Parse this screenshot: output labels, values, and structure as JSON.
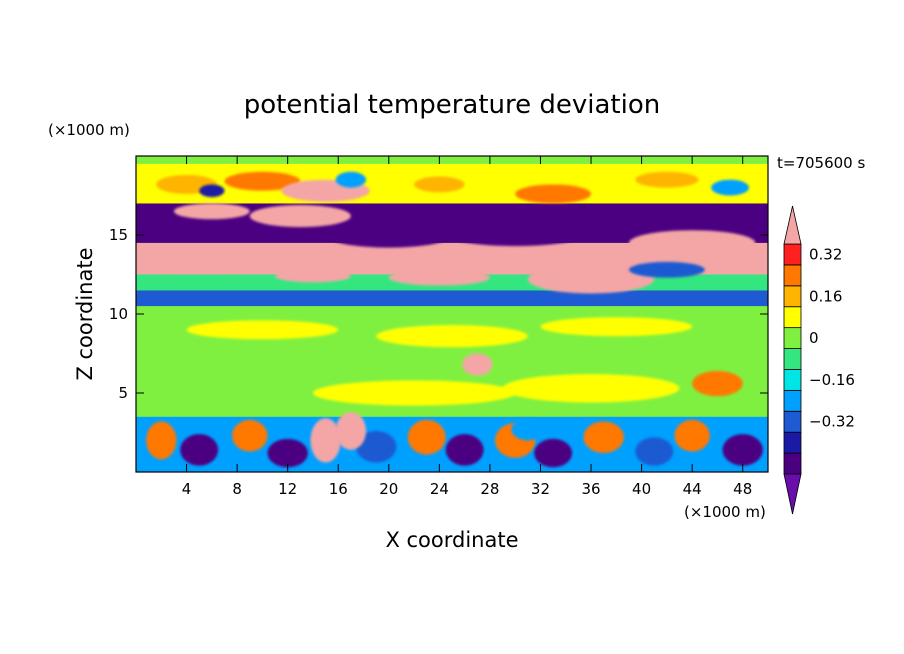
{
  "chart_data": {
    "type": "heatmap",
    "title": "potential temperature deviation",
    "xlabel": "X coordinate",
    "ylabel": "Z coordinate",
    "x_unit": "(×1000 m)",
    "y_unit": "(×1000 m)",
    "time_label": "t=705600 s",
    "xlim": [
      0,
      50
    ],
    "ylim": [
      0,
      20
    ],
    "x_ticks": [
      4,
      8,
      12,
      16,
      20,
      24,
      28,
      32,
      36,
      40,
      44,
      48
    ],
    "y_ticks": [
      5,
      10,
      15
    ],
    "colorbar": {
      "levels": [
        -0.48,
        -0.4,
        -0.32,
        -0.24,
        -0.16,
        -0.08,
        0,
        0.08,
        0.16,
        0.24,
        0.32,
        0.4
      ],
      "tick_labels": [
        "0.32",
        "0.16",
        "0",
        "−0.16",
        "−0.32"
      ],
      "tick_values": [
        0.32,
        0.16,
        0,
        -0.16,
        -0.32
      ],
      "colors": [
        "#6a0dad",
        "#4b0082",
        "#1a1aa6",
        "#1e5ad2",
        "#00a0ff",
        "#00e6e6",
        "#33e680",
        "#80f040",
        "#ffff00",
        "#ffb400",
        "#ff7800",
        "#ff2020",
        "#f4a6a6"
      ]
    },
    "bands": [
      {
        "z": [
          0.0,
          3.5
        ],
        "value": -0.2,
        "note": "turbulent boundary layer, mixed warm/cold cells"
      },
      {
        "z": [
          3.5,
          10.5
        ],
        "value": 0.02
      },
      {
        "z": [
          10.5,
          11.5
        ],
        "value": -0.32
      },
      {
        "z": [
          11.5,
          12.5
        ],
        "value": -0.05
      },
      {
        "z": [
          12.5,
          14.5
        ],
        "value": 0.45
      },
      {
        "z": [
          14.5,
          17.0
        ],
        "value": -0.42
      },
      {
        "z": [
          17.0,
          19.5
        ],
        "value": 0.1
      }
    ]
  }
}
